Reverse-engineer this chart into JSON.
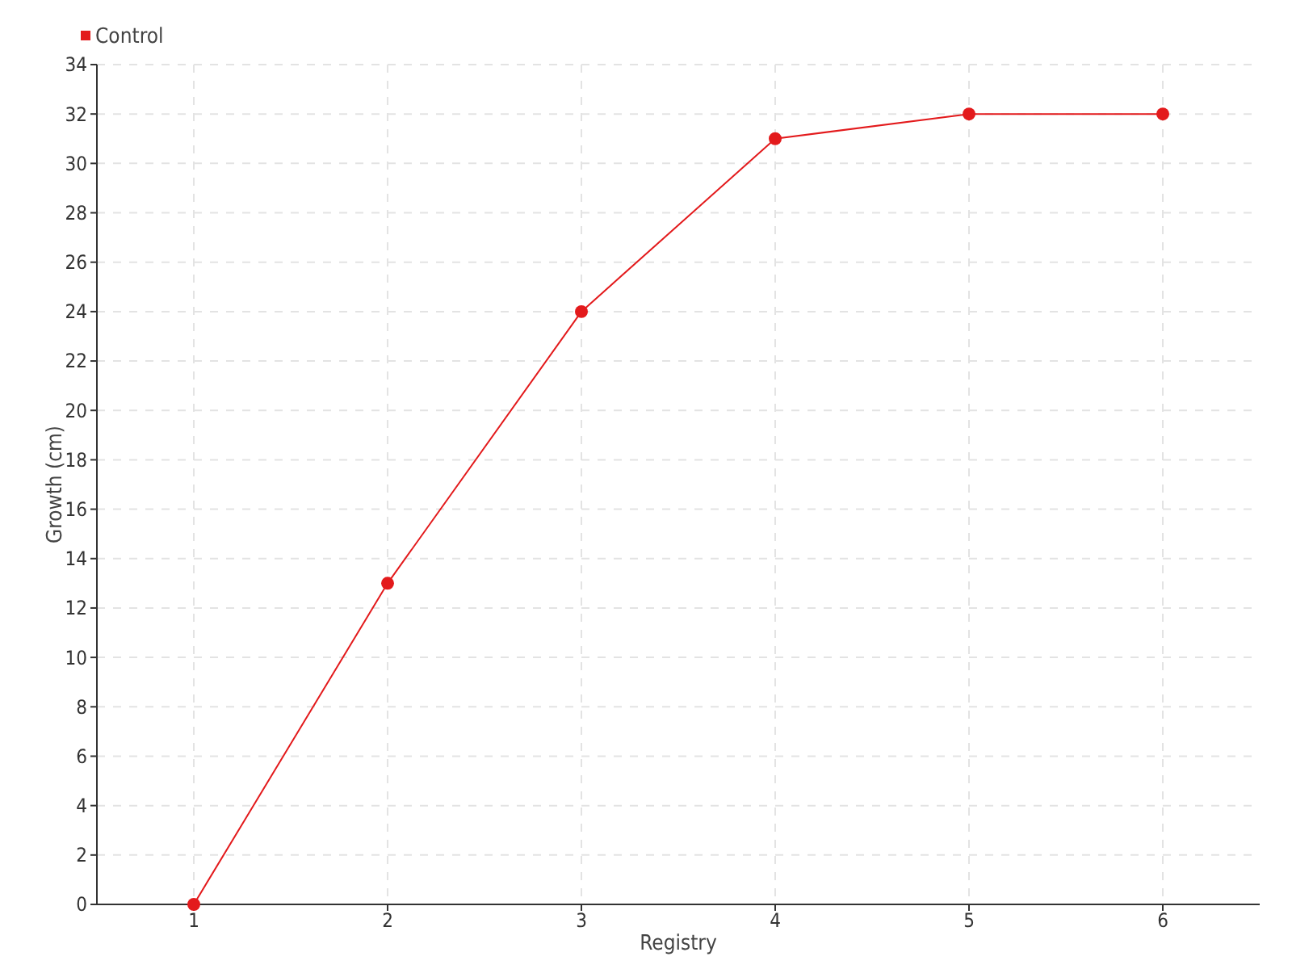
{
  "chart_data": {
    "type": "line",
    "xlabel": "Registry",
    "ylabel": "Growth (cm)",
    "x": [
      1,
      2,
      3,
      4,
      5,
      6
    ],
    "series": [
      {
        "name": "Control",
        "color": "#e31a1c",
        "values": [
          0,
          13,
          24,
          31,
          32,
          32
        ]
      }
    ],
    "xlim": [
      0.5,
      6.5
    ],
    "xticks": [
      1,
      2,
      3,
      4,
      5,
      6
    ],
    "ylim": [
      0,
      34
    ],
    "yticks": [
      0,
      2,
      4,
      6,
      8,
      10,
      12,
      14,
      16,
      18,
      20,
      22,
      24,
      26,
      28,
      30,
      32,
      34
    ],
    "grid": true,
    "legend": "top left",
    "marker": "circle",
    "line_style": "solid"
  }
}
